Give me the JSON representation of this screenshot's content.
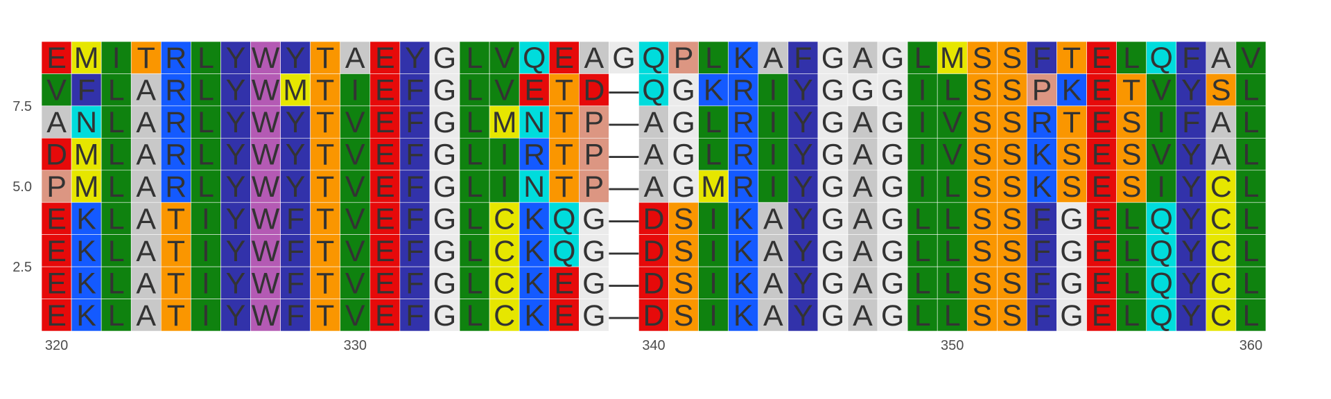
{
  "chart_data": {
    "type": "heatmap",
    "title": "",
    "xlabel": "",
    "ylabel": "",
    "xlim": [
      319.5,
      360.5
    ],
    "ylim": [
      0.5,
      9.5
    ],
    "x_ticks": [
      320,
      330,
      340,
      350,
      360
    ],
    "y_ticks": [
      2.5,
      5.0,
      7.5
    ],
    "x_start": 320,
    "gap_symbol": "—",
    "sequences": [
      "EMITRLYWYTAEYGLVQEAGQPLKAFGAGLMSSFTELQFAV",
      "VFLARLYWMTIEFGLVETD-QGKRIYGGGILSSPKETVYSL",
      "ANLARLYWYTVEFGLMNTP-AGLRIYGAGIVSSRTESIFAL",
      "DMLARLYWYTVEFGLIRTP-AGLRIYGAGIVSSKSESVYAL",
      "PMLARLYWYTVEFGLINTP-AGMRIYGAGILSSKSESIYCL",
      "EKLATIYWFTVEFGLCKQG-DSIKAYGAGLLSSFGELQYCL",
      "EKLATIYWFTVEFGLCKQG-DSIKAYGAGLLSSFGELQYCL",
      "EKLATIYWFTVEFGLCKEG-DSIKAYGAGLLSSFGELQYCL",
      "EKLATIYWFTVEFGLCKEG-DSIKAYGAGLLSSFGELQYCL"
    ],
    "residue_colors": {
      "A": "#c8c8c8",
      "G": "#ebebeb",
      "P": "#dc9682",
      "L": "#0f820f",
      "I": "#0f820f",
      "V": "#0f820f",
      "F": "#3232aa",
      "Y": "#3232aa",
      "W": "#b45ab4",
      "S": "#fa9600",
      "T": "#fa9600",
      "C": "#e6e600",
      "M": "#e6e600",
      "N": "#00dcdc",
      "Q": "#00dcdc",
      "D": "#e60a0a",
      "E": "#e60a0a",
      "K": "#145aff",
      "R": "#145aff",
      "-": "#ffffff"
    }
  }
}
